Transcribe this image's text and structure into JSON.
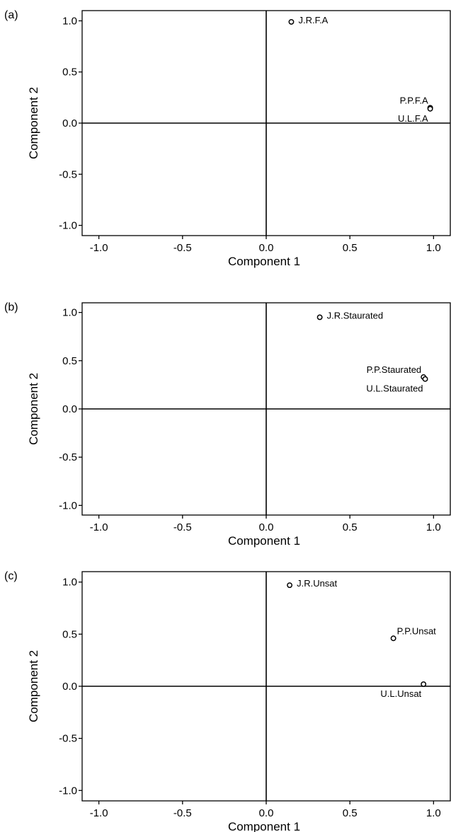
{
  "chart_data": [
    {
      "type": "scatter",
      "panel_label": "(a)",
      "xlabel": "Component 1",
      "ylabel": "Component 2",
      "xlim": [
        -1.1,
        1.1
      ],
      "ylim": [
        -1.1,
        1.1
      ],
      "xticks": [
        "-1.0",
        "-0.5",
        "0.0",
        "0.5",
        "1.0"
      ],
      "yticks": [
        "-1.0",
        "-0.5",
        "0.0",
        "0.5",
        "1.0"
      ],
      "grid": false,
      "points": [
        {
          "label": "J.R.F.A",
          "x": 0.15,
          "y": 0.99,
          "label_pos": "right"
        },
        {
          "label": "P.P.F.A",
          "x": 0.98,
          "y": 0.15,
          "label_pos": "above-left"
        },
        {
          "label": "U.L.F.A",
          "x": 0.98,
          "y": 0.14,
          "label_pos": "below-left"
        }
      ]
    },
    {
      "type": "scatter",
      "panel_label": "(b)",
      "xlabel": "Component 1",
      "ylabel": "Component 2",
      "xlim": [
        -1.1,
        1.1
      ],
      "ylim": [
        -1.1,
        1.1
      ],
      "xticks": [
        "-1.0",
        "-0.5",
        "0.0",
        "0.5",
        "1.0"
      ],
      "yticks": [
        "-1.0",
        "-0.5",
        "0.0",
        "0.5",
        "1.0"
      ],
      "grid": false,
      "points": [
        {
          "label": "J.R.Staurated",
          "x": 0.32,
          "y": 0.95,
          "label_pos": "right"
        },
        {
          "label": "P.P.Staurated",
          "x": 0.94,
          "y": 0.33,
          "label_pos": "above-left"
        },
        {
          "label": "U.L.Staurated",
          "x": 0.95,
          "y": 0.31,
          "label_pos": "below-left"
        }
      ]
    },
    {
      "type": "scatter",
      "panel_label": "(c)",
      "xlabel": "Component 1",
      "ylabel": "Component 2",
      "xlim": [
        -1.1,
        1.1
      ],
      "ylim": [
        -1.1,
        1.1
      ],
      "xticks": [
        "-1.0",
        "-0.5",
        "0.0",
        "0.5",
        "1.0"
      ],
      "yticks": [
        "-1.0",
        "-0.5",
        "0.0",
        "0.5",
        "1.0"
      ],
      "grid": false,
      "points": [
        {
          "label": "J.R.Unsat",
          "x": 0.14,
          "y": 0.97,
          "label_pos": "right"
        },
        {
          "label": "P.P.Unsat",
          "x": 0.76,
          "y": 0.46,
          "label_pos": "above-right"
        },
        {
          "label": "U.L.Unsat",
          "x": 0.94,
          "y": 0.02,
          "label_pos": "below-left"
        }
      ]
    }
  ]
}
